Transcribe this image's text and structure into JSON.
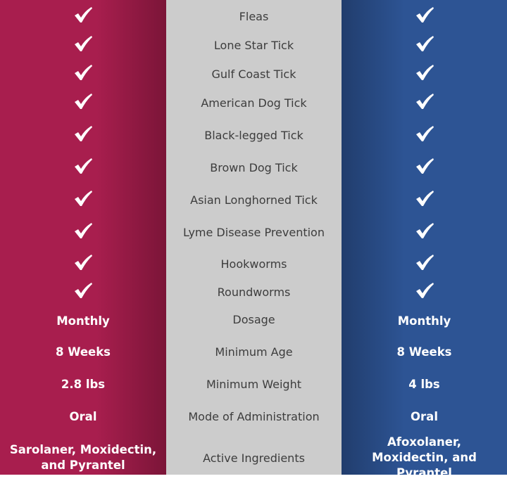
{
  "colors": {
    "left": "#a81e4e",
    "middle": "#cccccc",
    "right": "#2d5494"
  },
  "rows": [
    {
      "label": "Fleas",
      "left": "check-icon",
      "right": "check-icon"
    },
    {
      "label": "Lone Star Tick",
      "left": "check-icon",
      "right": "check-icon"
    },
    {
      "label": "Gulf Coast Tick",
      "left": "check-icon",
      "right": "check-icon"
    },
    {
      "label": "American Dog Tick",
      "left": "check-icon",
      "right": "check-icon"
    },
    {
      "label": "Black-legged Tick",
      "left": "check-icon",
      "right": "check-icon"
    },
    {
      "label": "Brown Dog Tick",
      "left": "check-icon",
      "right": "check-icon"
    },
    {
      "label": "Asian Longhorned Tick",
      "left": "check-icon",
      "right": "check-icon"
    },
    {
      "label": "Lyme Disease Prevention",
      "left": "check-icon",
      "right": "check-icon"
    },
    {
      "label": "Hookworms",
      "left": "check-icon",
      "right": "check-icon"
    },
    {
      "label": "Roundworms",
      "left": "check-icon",
      "right": "check-icon"
    },
    {
      "label": "Dosage",
      "left": "Monthly",
      "right": "Monthly"
    },
    {
      "label": "Minimum Age",
      "left": "8 Weeks",
      "right": "8 Weeks"
    },
    {
      "label": "Minimum Weight",
      "left": "2.8 lbs",
      "right": "4 lbs"
    },
    {
      "label": "Mode of Administration",
      "left": "Oral",
      "right": "Oral"
    },
    {
      "label": "Active Ingredients",
      "left": "Sarolaner, Moxidectin, and Pyrantel",
      "right": "Afoxolaner, Moxidectin, and Pyrantel"
    }
  ]
}
